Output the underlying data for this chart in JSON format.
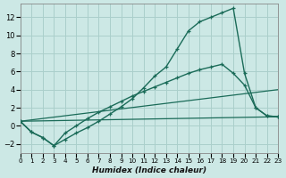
{
  "xlabel": "Humidex (Indice chaleur)",
  "bg_color": "#cce8e5",
  "grid_color": "#aacfcb",
  "line_color": "#1a6b58",
  "xlim": [
    0,
    23
  ],
  "ylim": [
    -3.0,
    13.5
  ],
  "xticks": [
    0,
    1,
    2,
    3,
    4,
    5,
    6,
    7,
    8,
    9,
    10,
    11,
    12,
    13,
    14,
    15,
    16,
    17,
    18,
    19,
    20,
    21,
    22,
    23
  ],
  "yticks": [
    -2,
    0,
    2,
    4,
    6,
    8,
    10,
    12
  ],
  "curve1_x": [
    0,
    1,
    2,
    3,
    4,
    5,
    6,
    7,
    8,
    9,
    10,
    11,
    12,
    13,
    14,
    15,
    16,
    17,
    18,
    19,
    20,
    21,
    22,
    23
  ],
  "curve1_y": [
    0.5,
    -0.7,
    -1.3,
    -2.2,
    -1.5,
    -0.8,
    -0.2,
    0.5,
    1.3,
    2.1,
    3.0,
    4.2,
    5.5,
    6.5,
    8.5,
    10.5,
    11.5,
    12.0,
    12.5,
    13.0,
    5.8,
    2.0,
    1.1,
    1.0
  ],
  "curve2_x": [
    0,
    1,
    2,
    3,
    4,
    5,
    6,
    7,
    8,
    9,
    10,
    11,
    12,
    13,
    14,
    15,
    16,
    17,
    18,
    19,
    20,
    21,
    22,
    23
  ],
  "curve2_y": [
    0.5,
    -0.7,
    -1.3,
    -2.2,
    -0.8,
    0.0,
    0.8,
    1.5,
    2.1,
    2.7,
    3.3,
    3.8,
    4.3,
    4.8,
    5.3,
    5.8,
    6.2,
    6.5,
    6.8,
    5.8,
    4.5,
    2.0,
    1.1,
    1.0
  ],
  "line3_x": [
    0,
    23
  ],
  "line3_y": [
    0.5,
    4.0
  ],
  "line4_x": [
    0,
    23
  ],
  "line4_y": [
    0.5,
    1.0
  ]
}
